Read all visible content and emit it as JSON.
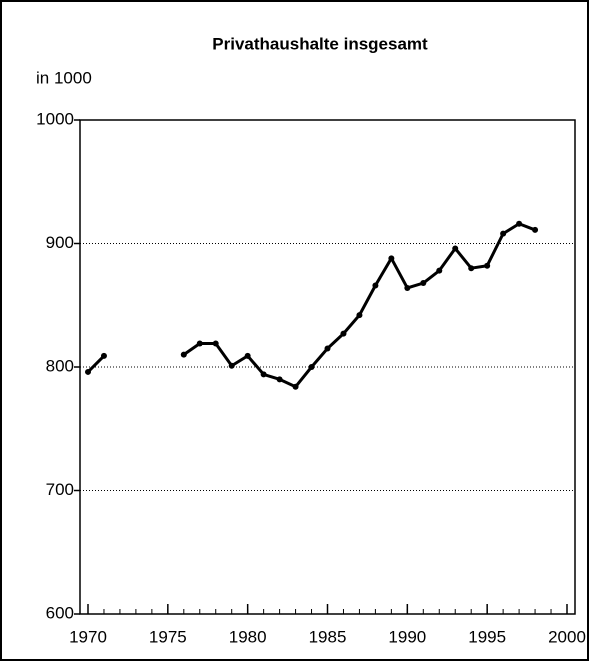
{
  "chart_data": {
    "type": "line",
    "title": "Privathaushalte insgesamt",
    "y_axis_label": "in 1000",
    "x": [
      1970,
      1971,
      1972,
      1973,
      1974,
      1975,
      1976,
      1977,
      1978,
      1979,
      1980,
      1981,
      1982,
      1983,
      1984,
      1985,
      1986,
      1987,
      1988,
      1989,
      1990,
      1991,
      1992,
      1993,
      1994,
      1995,
      1996,
      1997,
      1998
    ],
    "series": [
      {
        "color": "#000000",
        "values": [
          796,
          809,
          null,
          null,
          null,
          null,
          810,
          819,
          819,
          801,
          809,
          794,
          790,
          784,
          800,
          815,
          827,
          842,
          866,
          888,
          864,
          868,
          878,
          896,
          880,
          882,
          908,
          916,
          911
        ]
      }
    ],
    "xlim": [
      1970,
      2000
    ],
    "xticks": [
      1970,
      1975,
      1980,
      1985,
      1990,
      1995,
      2000
    ],
    "ylim": [
      600,
      1000
    ],
    "yticks": [
      600,
      700,
      800,
      900,
      1000
    ],
    "grid": true
  }
}
